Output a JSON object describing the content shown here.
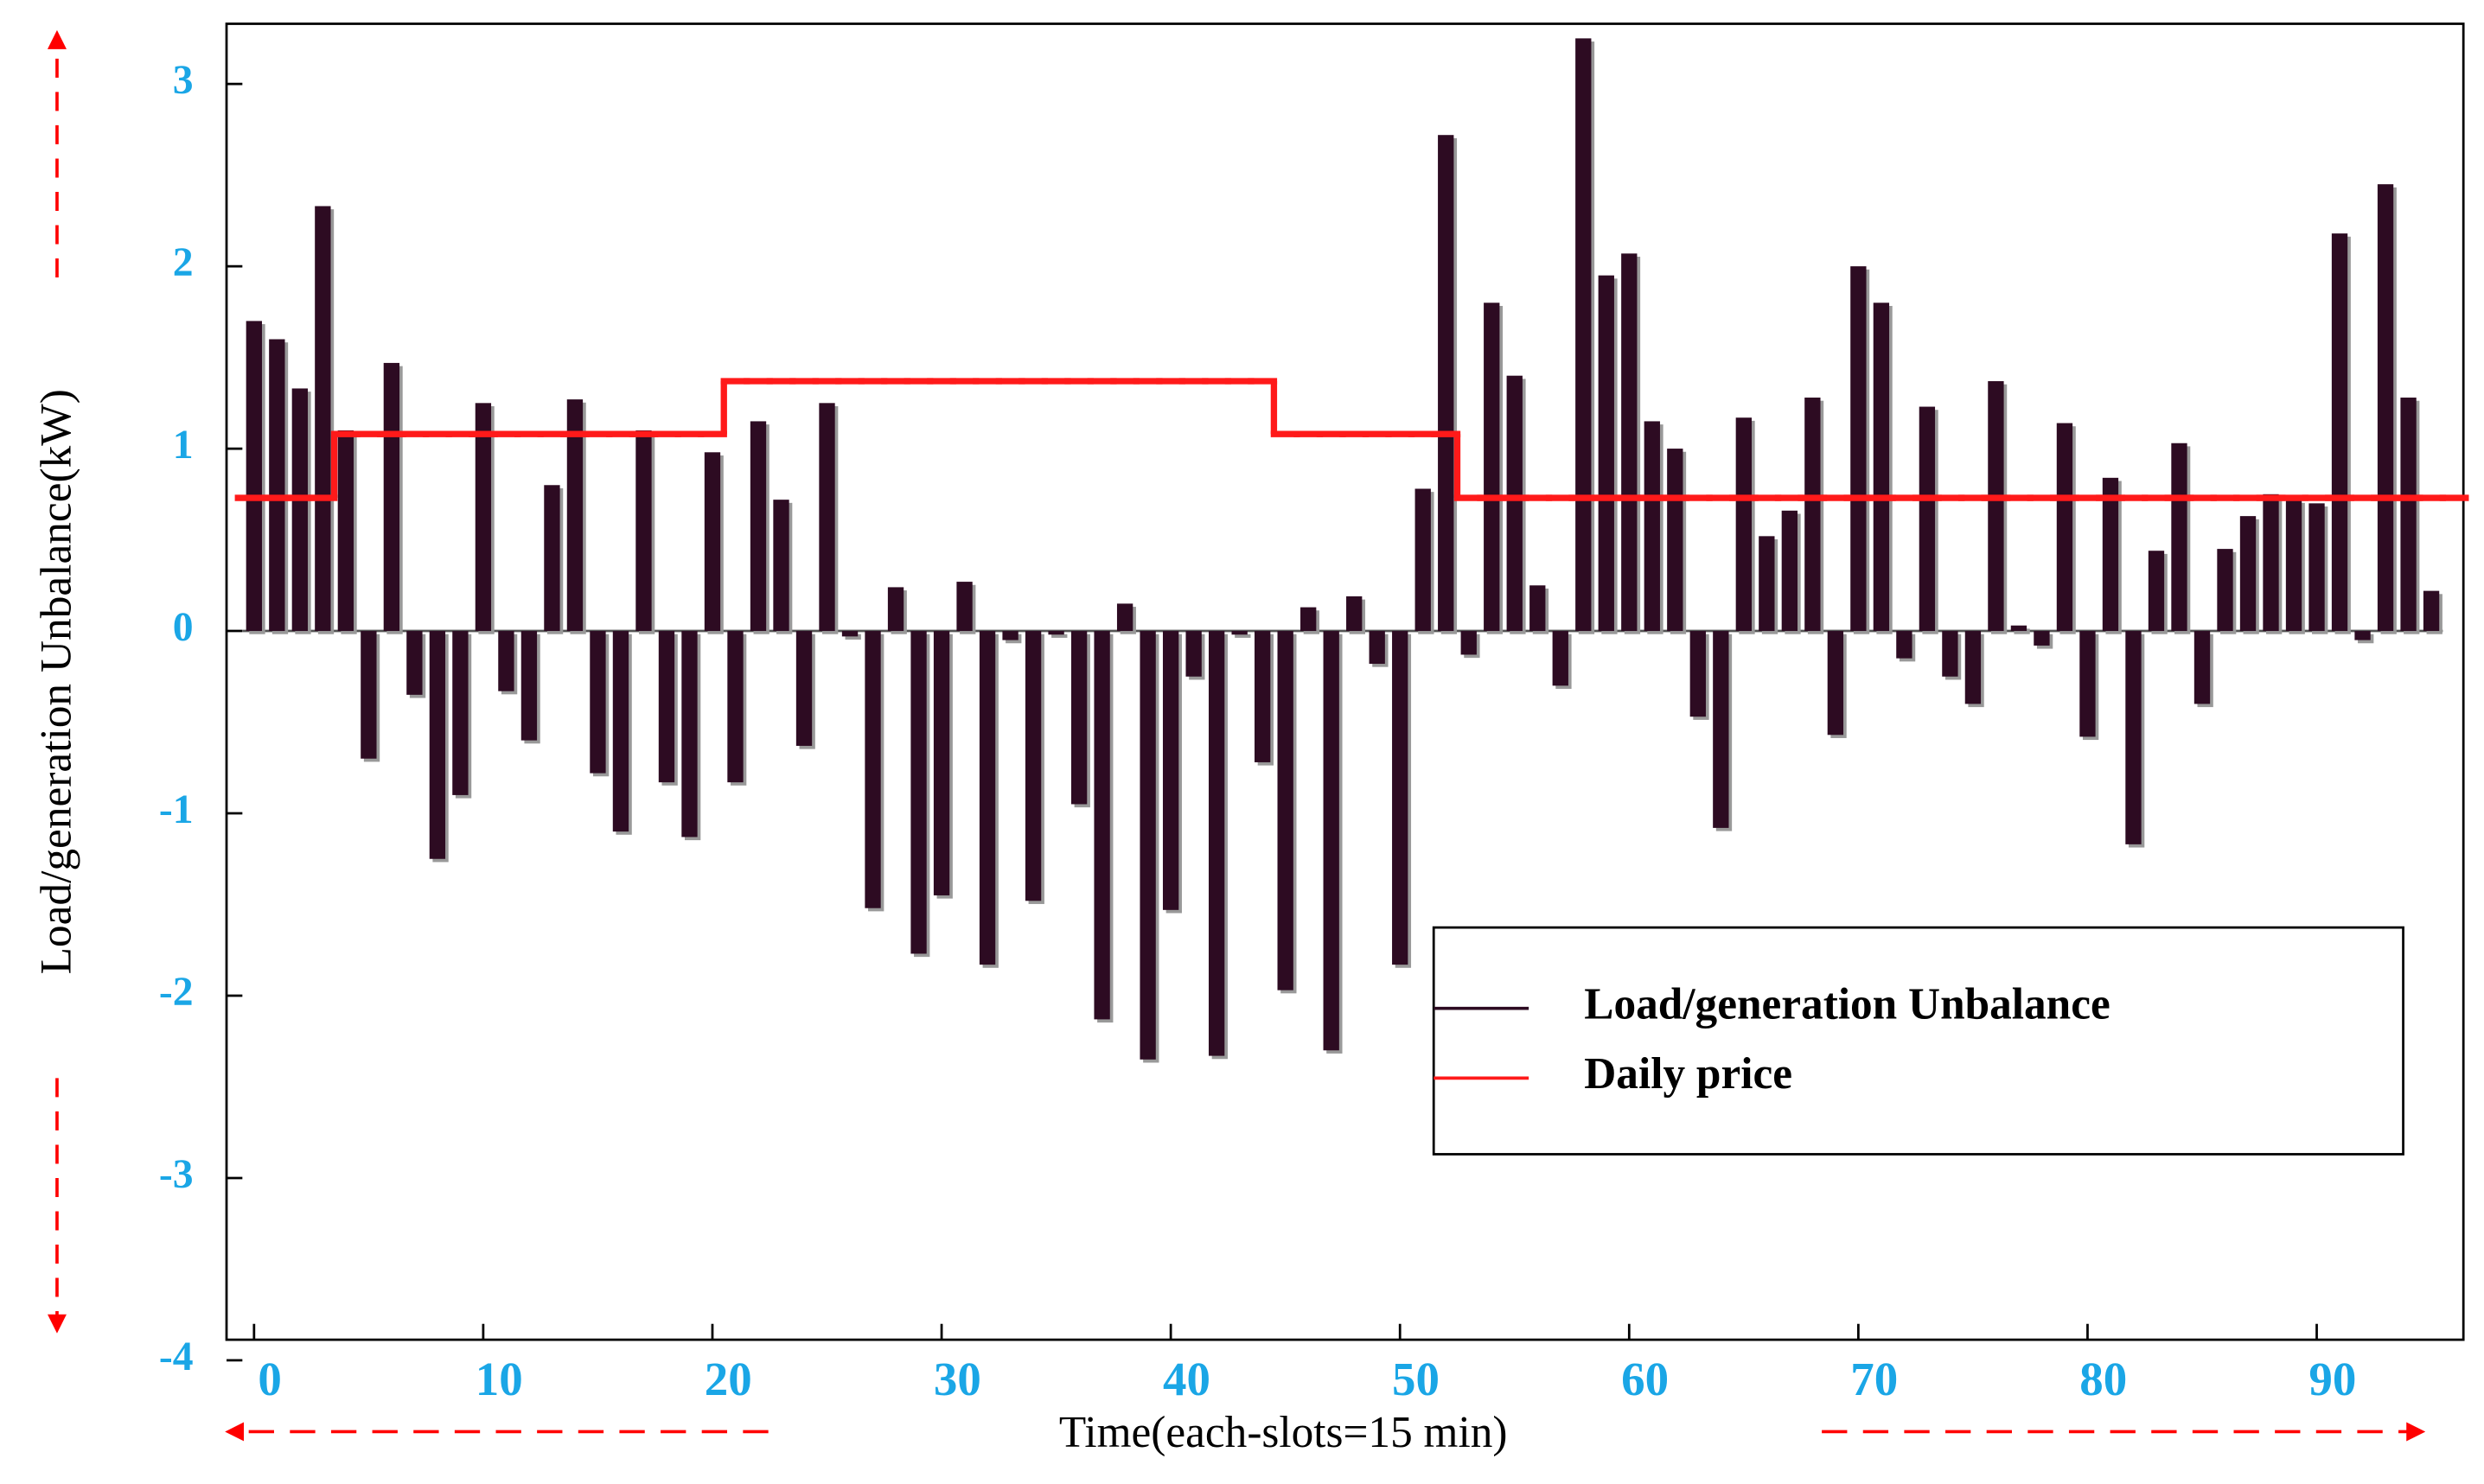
{
  "chart_data": {
    "type": "bar",
    "ylabel": "Load/generation Unbalance(kW)",
    "xlabel": "Time(each-slots=15 min)",
    "xlim": [
      -1.2,
      96.4
    ],
    "xticks": [
      0,
      10,
      20,
      30,
      40,
      50,
      60,
      70,
      80,
      90
    ],
    "ylim": [
      -4,
      3.33
    ],
    "yticks": [
      -4,
      -3,
      -2,
      -1,
      0,
      1,
      2,
      3
    ],
    "series": [
      {
        "name": "Load/generation Unbalance",
        "color": "#2d0b22",
        "values": [
          1.7,
          1.6,
          1.33,
          2.33,
          1.1,
          -0.7,
          1.47,
          -0.35,
          -1.25,
          -0.9,
          1.25,
          -0.33,
          -0.6,
          0.8,
          1.27,
          -0.78,
          -1.1,
          1.1,
          -0.83,
          -1.13,
          0.98,
          -0.83,
          1.15,
          0.72,
          -0.63,
          1.25,
          -0.03,
          -1.52,
          0.24,
          -1.77,
          -1.45,
          0.27,
          -1.83,
          -0.05,
          -1.48,
          -0.02,
          -0.95,
          -2.13,
          0.15,
          -2.35,
          -1.53,
          -0.25,
          -2.33,
          -0.02,
          -0.72,
          -1.97,
          0.13,
          -2.3,
          0.19,
          -0.18,
          -1.83,
          0.78,
          2.72,
          -0.13,
          1.8,
          1.4,
          0.25,
          -0.3,
          3.25,
          1.95,
          2.07,
          1.15,
          1.0,
          -0.47,
          -1.08,
          1.17,
          0.52,
          0.66,
          1.28,
          -0.57,
          2.0,
          1.8,
          -0.15,
          1.23,
          -0.25,
          -0.4,
          1.37,
          0.03,
          -0.08,
          1.14,
          -0.58,
          0.84,
          -1.17,
          0.44,
          1.03,
          -0.4,
          0.45,
          0.63,
          0.75,
          0.72,
          0.7,
          2.18,
          -0.05,
          2.45,
          1.28,
          0.22
        ]
      },
      {
        "name": "Daily price",
        "color": "#ff1a1a",
        "values": [
          0.73,
          0.73,
          0.73,
          0.73,
          1.08,
          1.08,
          1.08,
          1.08,
          1.08,
          1.08,
          1.08,
          1.08,
          1.08,
          1.08,
          1.08,
          1.08,
          1.08,
          1.08,
          1.08,
          1.08,
          1.08,
          1.37,
          1.37,
          1.37,
          1.37,
          1.37,
          1.37,
          1.37,
          1.37,
          1.37,
          1.37,
          1.37,
          1.37,
          1.37,
          1.37,
          1.37,
          1.37,
          1.37,
          1.37,
          1.37,
          1.37,
          1.37,
          1.37,
          1.37,
          1.37,
          1.08,
          1.08,
          1.08,
          1.08,
          1.08,
          1.08,
          1.08,
          1.08,
          0.73,
          0.73,
          0.73,
          0.73,
          0.73,
          0.73,
          0.73,
          0.73,
          0.73,
          0.73,
          0.73,
          0.73,
          0.73,
          0.73,
          0.73,
          0.73,
          0.73,
          0.73,
          0.73,
          0.73,
          0.73,
          0.73,
          0.73,
          0.73,
          0.73,
          0.73,
          0.73,
          0.73,
          0.73,
          0.73,
          0.73,
          0.73,
          0.73,
          0.73,
          0.73,
          0.73,
          0.73,
          0.73,
          0.73,
          0.73,
          0.73,
          0.73,
          0.73,
          0.73
        ]
      }
    ],
    "legend": "lower-right",
    "tick_color": "#1aa6e6"
  }
}
